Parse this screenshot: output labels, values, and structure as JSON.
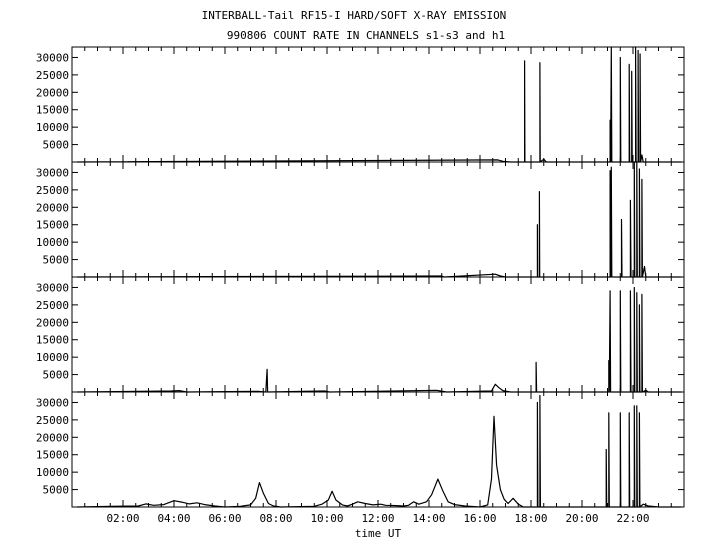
{
  "chart_data": {
    "type": "line",
    "title": "INTERBALL-Tail RF15-I HARD/SOFT X-RAY EMISSION",
    "subtitle": "990806  COUNT RATE IN CHANNELS s1-s3 and h1",
    "xlabel": "time UT",
    "x_unit": "hours UT",
    "xlim": [
      0,
      24
    ],
    "x_ticks": [
      2,
      4,
      6,
      8,
      10,
      12,
      14,
      16,
      18,
      20,
      22
    ],
    "x_tick_labels": [
      "02:00",
      "04:00",
      "06:00",
      "08:00",
      "10:00",
      "12:00",
      "14:00",
      "16:00",
      "18:00",
      "20:00",
      "22:00"
    ],
    "ylim": [
      0,
      33000
    ],
    "y_ticks": [
      5000,
      10000,
      15000,
      20000,
      25000,
      30000
    ],
    "y_tick_labels": [
      "5000",
      "10000",
      "15000",
      "20000",
      "25000",
      "30000"
    ],
    "grid": false,
    "series": [
      {
        "points": [
          [
            0.2,
            0
          ],
          [
            16.7,
            600
          ],
          [
            16.9,
            200
          ],
          [
            17.2,
            0
          ],
          [
            17.75,
            0
          ],
          [
            17.75,
            29000
          ],
          [
            17.76,
            0
          ],
          [
            18.35,
            0
          ],
          [
            18.35,
            28500
          ],
          [
            18.36,
            0
          ],
          [
            18.5,
            800
          ],
          [
            18.6,
            0
          ],
          [
            21.1,
            0
          ],
          [
            21.1,
            12000
          ],
          [
            21.12,
            0
          ],
          [
            21.15,
            33000
          ],
          [
            21.17,
            0
          ],
          [
            21.5,
            0
          ],
          [
            21.5,
            30000
          ],
          [
            21.52,
            0
          ],
          [
            21.85,
            0
          ],
          [
            21.85,
            28000
          ],
          [
            21.87,
            0
          ],
          [
            21.95,
            0
          ],
          [
            21.95,
            26000
          ],
          [
            21.97,
            0
          ],
          [
            22.1,
            0
          ],
          [
            22.1,
            33000
          ],
          [
            22.12,
            0
          ],
          [
            22.2,
            0
          ],
          [
            22.2,
            32000
          ],
          [
            22.22,
            0
          ],
          [
            22.28,
            0
          ],
          [
            22.28,
            31000
          ],
          [
            22.3,
            0
          ],
          [
            22.35,
            2000
          ],
          [
            22.4,
            0
          ],
          [
            23.9,
            0
          ]
        ]
      },
      {
        "points": [
          [
            0.2,
            0
          ],
          [
            14.5,
            300
          ],
          [
            14.6,
            0
          ],
          [
            16.6,
            800
          ],
          [
            16.8,
            300
          ],
          [
            17.0,
            0
          ],
          [
            18.25,
            0
          ],
          [
            18.25,
            15000
          ],
          [
            18.26,
            0
          ],
          [
            18.33,
            0
          ],
          [
            18.33,
            24500
          ],
          [
            18.34,
            0
          ],
          [
            18.5,
            0
          ],
          [
            21.1,
            0
          ],
          [
            21.1,
            30500
          ],
          [
            21.12,
            0
          ],
          [
            21.15,
            31500
          ],
          [
            21.17,
            0
          ],
          [
            21.55,
            0
          ],
          [
            21.55,
            16500
          ],
          [
            21.57,
            0
          ],
          [
            21.9,
            0
          ],
          [
            21.9,
            22000
          ],
          [
            21.92,
            0
          ],
          [
            22.05,
            0
          ],
          [
            22.05,
            33000
          ],
          [
            22.07,
            0
          ],
          [
            22.15,
            0
          ],
          [
            22.15,
            33000
          ],
          [
            22.17,
            0
          ],
          [
            22.25,
            0
          ],
          [
            22.25,
            31000
          ],
          [
            22.27,
            0
          ],
          [
            22.35,
            0
          ],
          [
            22.35,
            28000
          ],
          [
            22.37,
            0
          ],
          [
            22.45,
            3000
          ],
          [
            22.5,
            0
          ],
          [
            23.9,
            0
          ]
        ]
      },
      {
        "points": [
          [
            0.2,
            0
          ],
          [
            3.9,
            300
          ],
          [
            4.2,
            400
          ],
          [
            4.5,
            0
          ],
          [
            7.3,
            200
          ],
          [
            7.6,
            0
          ],
          [
            7.65,
            6500
          ],
          [
            7.67,
            0
          ],
          [
            9.9,
            300
          ],
          [
            10.1,
            0
          ],
          [
            14.3,
            500
          ],
          [
            14.7,
            0
          ],
          [
            16.45,
            300
          ],
          [
            16.6,
            2200
          ],
          [
            16.75,
            1200
          ],
          [
            16.9,
            400
          ],
          [
            17.2,
            0
          ],
          [
            18.2,
            0
          ],
          [
            18.2,
            8500
          ],
          [
            18.22,
            0
          ],
          [
            18.4,
            0
          ],
          [
            21.05,
            0
          ],
          [
            21.05,
            9000
          ],
          [
            21.07,
            0
          ],
          [
            21.1,
            29000
          ],
          [
            21.12,
            0
          ],
          [
            21.5,
            0
          ],
          [
            21.5,
            29000
          ],
          [
            21.52,
            0
          ],
          [
            21.9,
            0
          ],
          [
            21.9,
            29000
          ],
          [
            21.92,
            0
          ],
          [
            22.05,
            0
          ],
          [
            22.05,
            30000
          ],
          [
            22.07,
            0
          ],
          [
            22.15,
            0
          ],
          [
            22.15,
            28500
          ],
          [
            22.17,
            0
          ],
          [
            22.25,
            0
          ],
          [
            22.25,
            25000
          ],
          [
            22.27,
            0
          ],
          [
            22.35,
            0
          ],
          [
            22.35,
            28000
          ],
          [
            22.37,
            0
          ],
          [
            22.5,
            500
          ],
          [
            22.6,
            0
          ],
          [
            23.9,
            0
          ]
        ]
      },
      {
        "points": [
          [
            0.2,
            0
          ],
          [
            1.5,
            200
          ],
          [
            2.6,
            300
          ],
          [
            2.9,
            900
          ],
          [
            3.2,
            500
          ],
          [
            3.6,
            700
          ],
          [
            4.0,
            1800
          ],
          [
            4.3,
            1400
          ],
          [
            4.6,
            900
          ],
          [
            4.9,
            1200
          ],
          [
            5.2,
            700
          ],
          [
            5.6,
            300
          ],
          [
            6.0,
            0
          ],
          [
            6.6,
            200
          ],
          [
            7.0,
            600
          ],
          [
            7.2,
            2500
          ],
          [
            7.35,
            7000
          ],
          [
            7.5,
            4000
          ],
          [
            7.7,
            1000
          ],
          [
            7.9,
            300
          ],
          [
            8.2,
            0
          ],
          [
            9.5,
            200
          ],
          [
            9.8,
            800
          ],
          [
            10.05,
            2000
          ],
          [
            10.2,
            4500
          ],
          [
            10.35,
            2000
          ],
          [
            10.6,
            600
          ],
          [
            10.8,
            300
          ],
          [
            11.0,
            800
          ],
          [
            11.2,
            1500
          ],
          [
            11.5,
            1000
          ],
          [
            11.8,
            600
          ],
          [
            12.1,
            800
          ],
          [
            12.3,
            500
          ],
          [
            12.7,
            400
          ],
          [
            13.0,
            300
          ],
          [
            13.2,
            500
          ],
          [
            13.4,
            1500
          ],
          [
            13.6,
            800
          ],
          [
            13.9,
            1500
          ],
          [
            14.1,
            3500
          ],
          [
            14.35,
            8000
          ],
          [
            14.55,
            4500
          ],
          [
            14.75,
            1500
          ],
          [
            15.0,
            700
          ],
          [
            15.4,
            300
          ],
          [
            16.0,
            0
          ],
          [
            16.3,
            600
          ],
          [
            16.45,
            8000
          ],
          [
            16.55,
            26000
          ],
          [
            16.65,
            12000
          ],
          [
            16.8,
            5000
          ],
          [
            16.95,
            2200
          ],
          [
            17.1,
            1000
          ],
          [
            17.3,
            2500
          ],
          [
            17.5,
            800
          ],
          [
            17.7,
            0
          ],
          [
            18.25,
            0
          ],
          [
            18.25,
            30000
          ],
          [
            18.27,
            0
          ],
          [
            18.35,
            0
          ],
          [
            18.35,
            32000
          ],
          [
            18.37,
            0
          ],
          [
            20.95,
            0
          ],
          [
            20.95,
            16500
          ],
          [
            20.97,
            0
          ],
          [
            21.05,
            0
          ],
          [
            21.05,
            27000
          ],
          [
            21.07,
            0
          ],
          [
            21.5,
            0
          ],
          [
            21.5,
            27000
          ],
          [
            21.52,
            0
          ],
          [
            21.85,
            0
          ],
          [
            21.85,
            27000
          ],
          [
            21.87,
            0
          ],
          [
            22.05,
            0
          ],
          [
            22.05,
            29000
          ],
          [
            22.07,
            0
          ],
          [
            22.15,
            0
          ],
          [
            22.15,
            29000
          ],
          [
            22.17,
            0
          ],
          [
            22.25,
            0
          ],
          [
            22.25,
            27000
          ],
          [
            22.27,
            0
          ],
          [
            22.4,
            800
          ],
          [
            22.6,
            300
          ],
          [
            23.0,
            0
          ],
          [
            23.9,
            0
          ]
        ]
      }
    ]
  }
}
